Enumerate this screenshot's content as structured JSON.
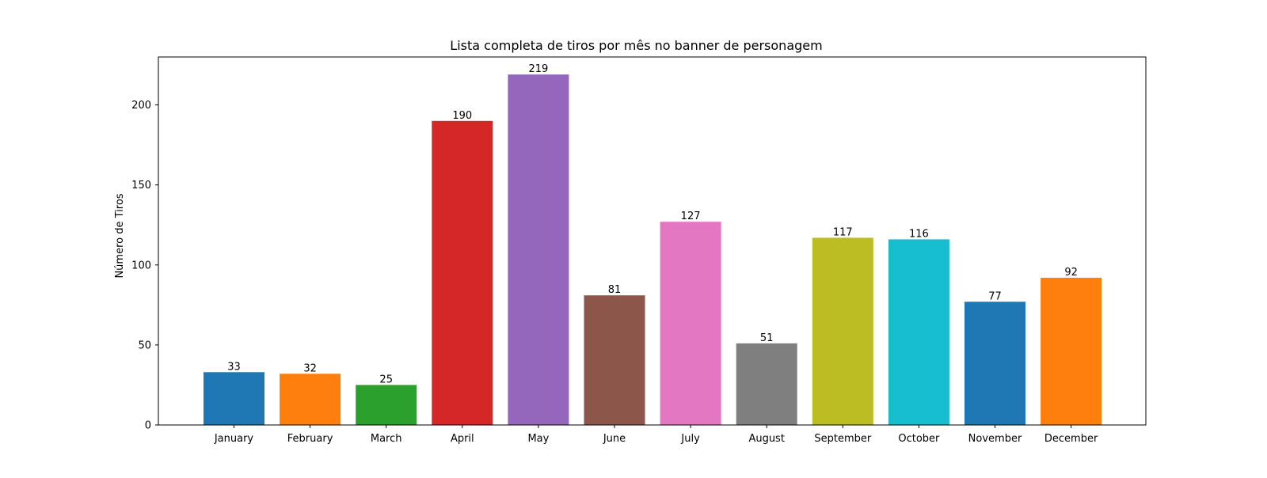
{
  "chart_data": {
    "type": "bar",
    "title": "Lista completa de tiros por mês no banner de personagem",
    "xlabel": "",
    "ylabel": "Número de Tiros",
    "categories": [
      "January",
      "February",
      "March",
      "April",
      "May",
      "June",
      "July",
      "August",
      "September",
      "October",
      "November",
      "December"
    ],
    "values": [
      33,
      32,
      25,
      190,
      219,
      81,
      127,
      51,
      117,
      116,
      77,
      92
    ],
    "colors": [
      "#1f77b4",
      "#ff7f0e",
      "#2ca02c",
      "#d62728",
      "#9467bd",
      "#8c564b",
      "#e377c2",
      "#7f7f7f",
      "#bcbd22",
      "#17becf",
      "#1f77b4",
      "#ff7f0e"
    ],
    "ylim": [
      0,
      229.95
    ],
    "yticks": [
      "0",
      "50",
      "100",
      "150",
      "200"
    ],
    "grid": false,
    "legend": "none"
  }
}
